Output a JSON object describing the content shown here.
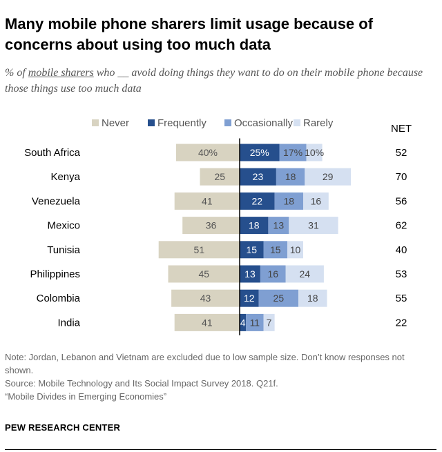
{
  "title": "Many mobile phone sharers limit usage because of concerns about using too much data",
  "subtitle": {
    "prefix": "% of ",
    "underlined": "mobile sharers",
    "suffix": " who __ avoid doing things they want to do on their mobile phone because those things use too much data"
  },
  "chart_data": {
    "type": "bar",
    "orientation": "horizontal-diverging",
    "categories": [
      "South Africa",
      "Kenya",
      "Venezuela",
      "Mexico",
      "Tunisia",
      "Philippines",
      "Colombia",
      "India"
    ],
    "series": [
      {
        "name": "Never",
        "values": [
          40,
          25,
          41,
          36,
          51,
          45,
          43,
          41
        ],
        "color": "#d8d3c1"
      },
      {
        "name": "Frequently",
        "values": [
          25,
          23,
          22,
          18,
          15,
          13,
          12,
          4
        ],
        "color": "#264f8d"
      },
      {
        "name": "Occasionally",
        "values": [
          17,
          18,
          18,
          13,
          15,
          16,
          25,
          11
        ],
        "color": "#7f9fd2"
      },
      {
        "name": "Rarely",
        "values": [
          10,
          29,
          16,
          31,
          10,
          24,
          18,
          7
        ],
        "color": "#d5e0f1"
      }
    ],
    "labels": {
      "Never": [
        "40%",
        "25",
        "41",
        "36",
        "51",
        "45",
        "43",
        "41"
      ],
      "Frequently": [
        "25%",
        "23",
        "22",
        "18",
        "15",
        "13",
        "12",
        "4"
      ],
      "Occasionally": [
        "17%",
        "18",
        "18",
        "13",
        "15",
        "16",
        "25",
        "11"
      ],
      "Rarely": [
        "10%",
        "29",
        "16",
        "31",
        "10",
        "24",
        "18",
        "7"
      ]
    },
    "net_header": "NET",
    "net": [
      "52",
      "70",
      "56",
      "62",
      "40",
      "53",
      "55",
      "22"
    ],
    "legend": [
      "Never",
      "Frequently",
      "Occasionally",
      "Rarely"
    ],
    "legend_position": "top"
  },
  "notes": {
    "note": "Note: Jordan, Lebanon and Vietnam are excluded due to low sample size. Don’t know responses not shown.",
    "source": "Source: Mobile Technology and Its Social Impact Survey 2018. Q21f.",
    "report": "“Mobile Divides in Emerging Economies”"
  },
  "org": "PEW RESEARCH CENTER"
}
